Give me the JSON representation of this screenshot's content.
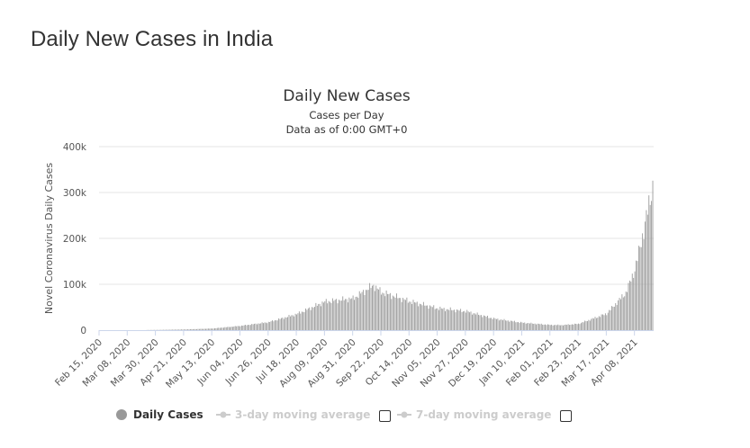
{
  "page": {
    "heading": "Daily New Cases in India"
  },
  "chart_data": {
    "type": "bar",
    "title": "Daily New Cases",
    "subtitle_lines": [
      "Cases per Day",
      "Data as of 0:00 GMT+0"
    ],
    "ylabel": "Novel Coronavirus Daily Cases",
    "xlabel": "",
    "ylim": [
      0,
      400000
    ],
    "y_ticks": [
      0,
      100000,
      200000,
      300000,
      400000
    ],
    "y_tick_labels": [
      "0",
      "100k",
      "200k",
      "300k",
      "400k"
    ],
    "x_range": [
      "2020-02-15",
      "2021-04-22"
    ],
    "x_tick_labels": [
      "Feb 15, 2020",
      "Mar 08, 2020",
      "Mar 30, 2020",
      "Apr 21, 2020",
      "May 13, 2020",
      "Jun 04, 2020",
      "Jun 26, 2020",
      "Jul 18, 2020",
      "Aug 09, 2020",
      "Aug 31, 2020",
      "Sep 22, 2020",
      "Oct 14, 2020",
      "Nov 05, 2020",
      "Nov 27, 2020",
      "Dec 19, 2020",
      "Jan 10, 2021",
      "Feb 01, 2021",
      "Feb 23, 2021",
      "Mar 17, 2021",
      "Apr 08, 2021"
    ],
    "grid": true,
    "legend_position": "bottom-center",
    "bar_color": "#999999",
    "series": [
      {
        "name": "Daily Cases",
        "points": [
          [
            "2020-02-15",
            0
          ],
          [
            "2020-03-15",
            100
          ],
          [
            "2020-04-01",
            500
          ],
          [
            "2020-04-21",
            1500
          ],
          [
            "2020-05-13",
            3500
          ],
          [
            "2020-06-04",
            9300
          ],
          [
            "2020-06-26",
            17300
          ],
          [
            "2020-07-18",
            34900
          ],
          [
            "2020-08-09",
            62000
          ],
          [
            "2020-08-31",
            69000
          ],
          [
            "2020-09-16",
            97900
          ],
          [
            "2020-09-22",
            83000
          ],
          [
            "2020-10-14",
            63000
          ],
          [
            "2020-11-05",
            47600
          ],
          [
            "2020-11-27",
            41300
          ],
          [
            "2020-12-19",
            25100
          ],
          [
            "2021-01-10",
            16300
          ],
          [
            "2021-02-01",
            11400
          ],
          [
            "2021-02-10",
            11000
          ],
          [
            "2021-02-23",
            13700
          ],
          [
            "2021-03-17",
            35900
          ],
          [
            "2021-04-01",
            81500
          ],
          [
            "2021-04-08",
            131900
          ],
          [
            "2021-04-15",
            217300
          ],
          [
            "2021-04-22",
            314800
          ]
        ]
      },
      {
        "name": "3-day moving average",
        "visible": false
      },
      {
        "name": "7-day moving average",
        "visible": false
      }
    ]
  }
}
